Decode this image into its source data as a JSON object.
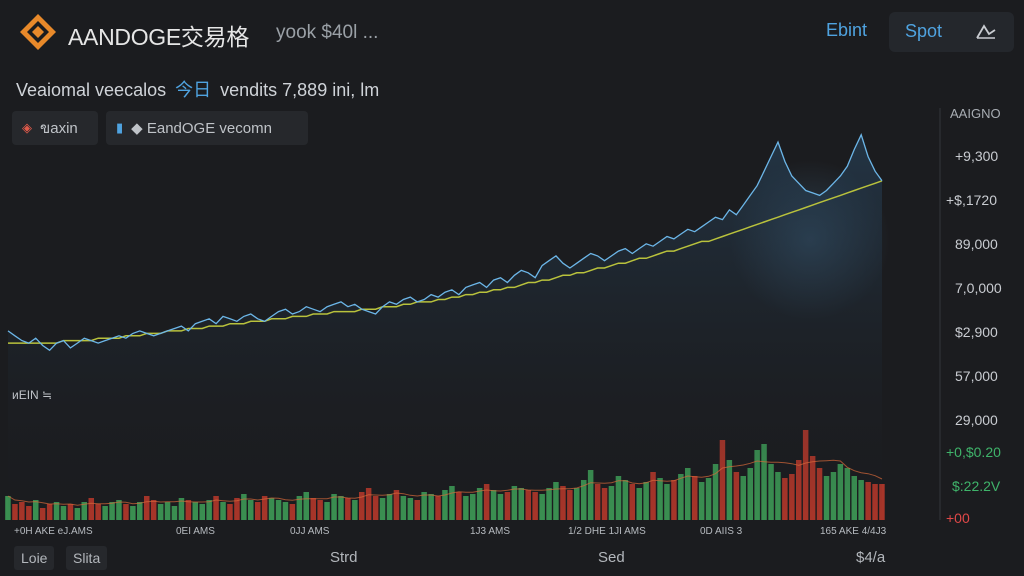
{
  "header": {
    "brand": "AANDOGE交易格",
    "subtitle": "yook $40l ...",
    "link": "Ebint",
    "button": "Spot",
    "logo_icon": "diamond-logo-icon",
    "button_icon": "chart-arrow-icon"
  },
  "metric": {
    "label": "Veaiomal veecalos",
    "cn": "今日",
    "value_text": "vendits 7,889 ini, lm"
  },
  "chips": [
    {
      "label": "ขaxin",
      "icon": "diamond-icon",
      "color": "#e05a4a"
    },
    {
      "label": "◆ EandOGE vecomn",
      "icon": "bar-icon",
      "color": "#4fa3e0"
    }
  ],
  "chart_data": {
    "type": "line",
    "axis_title": "AAIGNO",
    "y_ticks": [
      "+9,300",
      "+$,1720",
      "89,000",
      "7,0,000",
      "$2,900",
      "57,000",
      "29,000",
      "+0,$0.20",
      "$:22.2V",
      "+00"
    ],
    "x_ticks": [
      "+0H AKE eJ.AMS",
      "0EI AMS",
      "0JJ AMS",
      "1J3 AMS",
      "1/2 DHE 1JI AMS",
      "0D AIIS 3",
      "165 AKE 4/4J3"
    ],
    "volume_label": "ᴎEIN ≒",
    "colors": {
      "price": "#6cb6e8",
      "ma": "#b9c23c",
      "up": "#3fa35a",
      "down": "#c0392b"
    },
    "price": [
      52,
      50,
      48,
      47,
      49,
      46,
      44,
      47,
      48,
      45,
      47,
      49,
      48,
      47,
      48,
      49,
      50,
      49,
      51,
      52,
      51,
      50,
      51,
      52,
      53,
      54,
      52,
      55,
      56,
      57,
      55,
      58,
      57,
      56,
      58,
      59,
      57,
      56,
      58,
      60,
      61,
      59,
      60,
      62,
      61,
      60,
      62,
      63,
      64,
      62,
      63,
      61,
      60,
      59,
      62,
      64,
      63,
      65,
      66,
      64,
      65,
      67,
      66,
      68,
      69,
      67,
      70,
      71,
      72,
      70,
      73,
      74,
      72,
      75,
      77,
      76,
      74,
      79,
      81,
      83,
      80,
      78,
      80,
      82,
      84,
      83,
      81,
      83,
      85,
      86,
      84,
      86,
      88,
      87,
      89,
      91,
      90,
      92,
      94,
      93,
      95,
      97,
      99,
      98,
      102,
      100,
      104,
      108,
      112,
      118,
      124,
      130,
      122,
      116,
      113,
      110,
      109,
      108,
      110,
      113,
      116,
      120,
      127,
      133,
      124,
      118,
      114
    ],
    "ma": [
      47,
      47,
      47,
      47,
      47,
      47,
      47,
      47,
      48,
      48,
      48,
      48,
      48,
      49,
      49,
      49,
      49,
      50,
      50,
      50,
      51,
      51,
      51,
      52,
      52,
      52,
      53,
      53,
      53,
      54,
      54,
      54,
      55,
      55,
      55,
      56,
      56,
      56,
      57,
      57,
      57,
      58,
      58,
      58,
      59,
      59,
      59,
      60,
      60,
      60,
      60,
      61,
      61,
      61,
      62,
      62,
      62,
      63,
      63,
      64,
      64,
      64,
      65,
      65,
      66,
      66,
      67,
      67,
      68,
      68,
      69,
      69,
      70,
      70,
      71,
      72,
      72,
      73,
      73,
      74,
      75,
      75,
      76,
      76,
      77,
      78,
      78,
      79,
      80,
      80,
      81,
      82,
      82,
      83,
      84,
      85,
      85,
      86,
      87,
      88,
      89,
      89,
      90,
      91,
      92,
      93,
      94,
      95,
      96,
      97,
      98,
      99,
      100,
      101,
      102,
      103,
      104,
      105,
      106,
      107,
      108,
      109,
      110,
      111,
      112,
      113,
      114
    ],
    "volume": [
      12,
      8,
      9,
      7,
      10,
      6,
      8,
      9,
      7,
      8,
      6,
      9,
      11,
      8,
      7,
      9,
      10,
      8,
      7,
      9,
      12,
      10,
      8,
      9,
      7,
      11,
      10,
      9,
      8,
      10,
      12,
      9,
      8,
      11,
      13,
      10,
      9,
      12,
      11,
      10,
      9,
      8,
      12,
      14,
      11,
      10,
      9,
      13,
      12,
      11,
      10,
      14,
      16,
      12,
      11,
      13,
      15,
      12,
      11,
      10,
      14,
      13,
      12,
      15,
      17,
      14,
      12,
      13,
      16,
      18,
      15,
      13,
      14,
      17,
      16,
      15,
      14,
      13,
      16,
      19,
      17,
      15,
      16,
      20,
      25,
      18,
      16,
      17,
      22,
      20,
      18,
      16,
      19,
      24,
      21,
      18,
      20,
      23,
      26,
      22,
      19,
      21,
      28,
      40,
      30,
      24,
      22,
      26,
      35,
      38,
      28,
      24,
      21,
      23,
      30,
      45,
      32,
      26,
      22,
      24,
      28,
      26,
      22,
      20,
      19,
      18,
      18
    ]
  },
  "footer": {
    "tabs": [
      "Loie",
      "Slita"
    ],
    "labels": [
      "Strd",
      "Sed",
      "$4/a"
    ]
  }
}
